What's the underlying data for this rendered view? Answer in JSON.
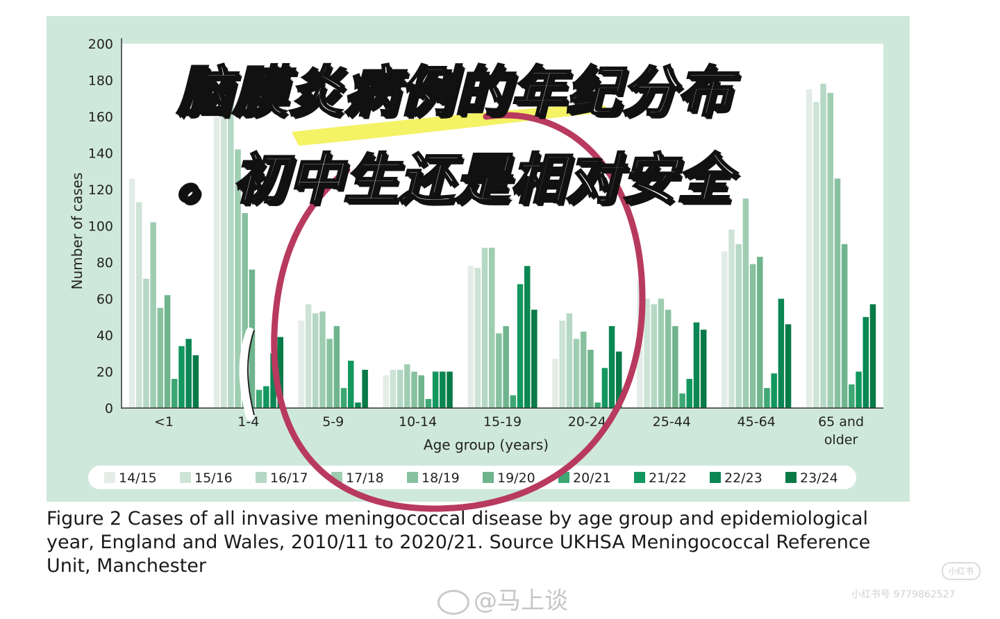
{
  "chart_data": {
    "type": "bar",
    "title": "",
    "xlabel": "Age group (years)",
    "ylabel": "Number of cases",
    "ylim": [
      0,
      200
    ],
    "yticks": [
      0,
      20,
      40,
      60,
      80,
      100,
      120,
      140,
      160,
      180,
      200
    ],
    "grid": false,
    "legend_position": "bottom",
    "categories": [
      "<1",
      "1-4",
      "5-9",
      "10-14",
      "15-19",
      "20-24",
      "25-44",
      "45-64",
      "65 and older"
    ],
    "series": [
      {
        "name": "14/15",
        "color": "#e4ece7",
        "values": [
          126,
          160,
          48,
          18,
          78,
          27,
          70,
          86,
          175
        ]
      },
      {
        "name": "15/16",
        "color": "#cce3d6",
        "values": [
          113,
          165,
          57,
          21,
          77,
          48,
          60,
          98,
          168
        ]
      },
      {
        "name": "16/17",
        "color": "#b5d8c4",
        "values": [
          71,
          168,
          52,
          21,
          88,
          52,
          57,
          90,
          178
        ]
      },
      {
        "name": "17/18",
        "color": "#9fcdb2",
        "values": [
          102,
          142,
          53,
          24,
          88,
          38,
          60,
          115,
          173
        ]
      },
      {
        "name": "18/19",
        "color": "#88c1a0",
        "values": [
          55,
          107,
          38,
          20,
          41,
          42,
          54,
          79,
          126
        ]
      },
      {
        "name": "19/20",
        "color": "#6fb48d",
        "values": [
          62,
          76,
          45,
          18,
          45,
          32,
          45,
          83,
          90
        ]
      },
      {
        "name": "20/21",
        "color": "#3ea774",
        "values": [
          16,
          10,
          11,
          5,
          7,
          3,
          8,
          11,
          13
        ]
      },
      {
        "name": "21/22",
        "color": "#12975f",
        "values": [
          34,
          12,
          26,
          20,
          68,
          22,
          16,
          19,
          20
        ]
      },
      {
        "name": "22/23",
        "color": "#0a8752",
        "values": [
          38,
          30,
          3,
          20,
          78,
          45,
          47,
          60,
          50
        ]
      },
      {
        "name": "23/24",
        "color": "#087a48",
        "values": [
          29,
          39,
          21,
          20,
          54,
          31,
          43,
          46,
          57
        ]
      }
    ]
  },
  "caption": "Figure 2 Cases of all invasive meningococcal disease by age group and epidemiological year, England and Wales, 2010/11 to 2020/21. Source UKHSA Meningococcal Reference Unit, Manchester",
  "overlay": {
    "line1": "脑膜炎病例的年纪分布",
    "line2": "。初中生还是相对安全",
    "highlight_color": "#f2f04a",
    "circle_color": "#b83a5e"
  },
  "watermark": {
    "text": "@马上谈"
  },
  "app": {
    "badge": "小红书",
    "id_text": "小红书号 9779862527"
  },
  "colors": {
    "panel_bg": "#cfe8dc",
    "plot_bg": "#ffffff",
    "legend_bg": "#ffffff"
  }
}
